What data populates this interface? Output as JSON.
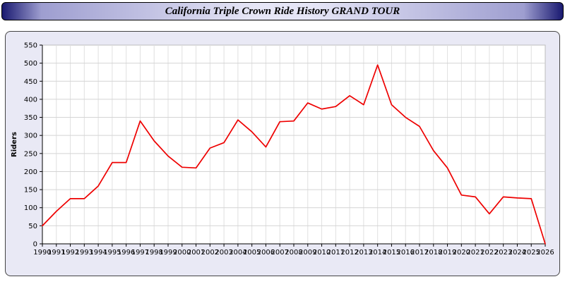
{
  "title": "California Triple Crown Ride History GRAND TOUR",
  "colors": {
    "line": "#ee0000",
    "panel_bg": "#e9e9f5",
    "titlebar_navy": "#191970",
    "titlebar_lavender": "#e6e6f6",
    "plot_bg": "#ffffff",
    "grid": "#d4d4d4"
  },
  "chart_data": {
    "type": "line",
    "title": "California Triple Crown Ride History GRAND TOUR",
    "xlabel": "",
    "ylabel": "Riders",
    "ylim": [
      0,
      550
    ],
    "ytick_step": 50,
    "grid": "on",
    "legend": "none",
    "line_color": "#ee0000",
    "years": [
      1990,
      1991,
      1992,
      1993,
      1994,
      1995,
      1996,
      1997,
      1998,
      1999,
      2000,
      2001,
      2002,
      2003,
      2004,
      2005,
      2006,
      2007,
      2008,
      2009,
      2010,
      2011,
      2012,
      2013,
      2014,
      2015,
      2016,
      2017,
      2018,
      2019,
      2020,
      2021,
      2022,
      2023,
      2024,
      2025,
      2026
    ],
    "values": [
      50,
      90,
      125,
      125,
      160,
      225,
      225,
      340,
      285,
      243,
      212,
      210,
      265,
      280,
      343,
      310,
      268,
      338,
      340,
      390,
      373,
      380,
      410,
      385,
      495,
      385,
      350,
      325,
      258,
      210,
      135,
      130,
      83,
      130,
      127,
      125,
      0
    ]
  }
}
